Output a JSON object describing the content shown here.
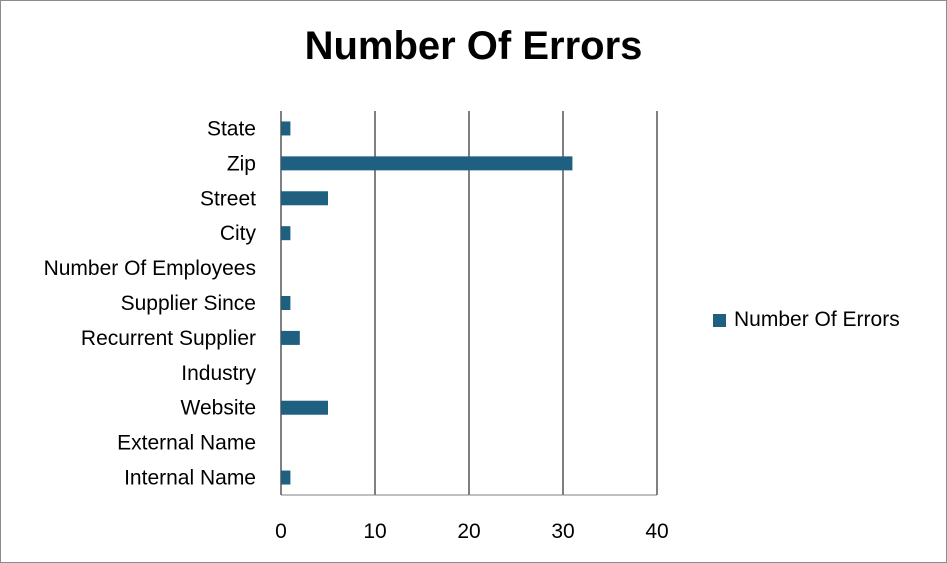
{
  "chart_data": {
    "type": "bar",
    "orientation": "horizontal",
    "title": "Number Of Errors",
    "xlabel": "",
    "ylabel": "",
    "categories": [
      "State",
      "Zip",
      "Street",
      "City",
      "Number Of Employees",
      "Supplier Since",
      "Recurrent Supplier",
      "Industry",
      "Website",
      "External Name",
      "Internal Name"
    ],
    "series": [
      {
        "name": "Number Of Errors",
        "values": [
          1,
          31,
          5,
          1,
          0,
          1,
          2,
          0,
          5,
          0,
          1
        ]
      }
    ],
    "xlim": [
      0,
      40
    ],
    "x_ticks": [
      "0",
      "10",
      "20",
      "30",
      "40"
    ],
    "grid": "vertical",
    "legend_position": "right",
    "colors": {
      "bar": "#1f5f7f",
      "grid": "#808080"
    }
  }
}
